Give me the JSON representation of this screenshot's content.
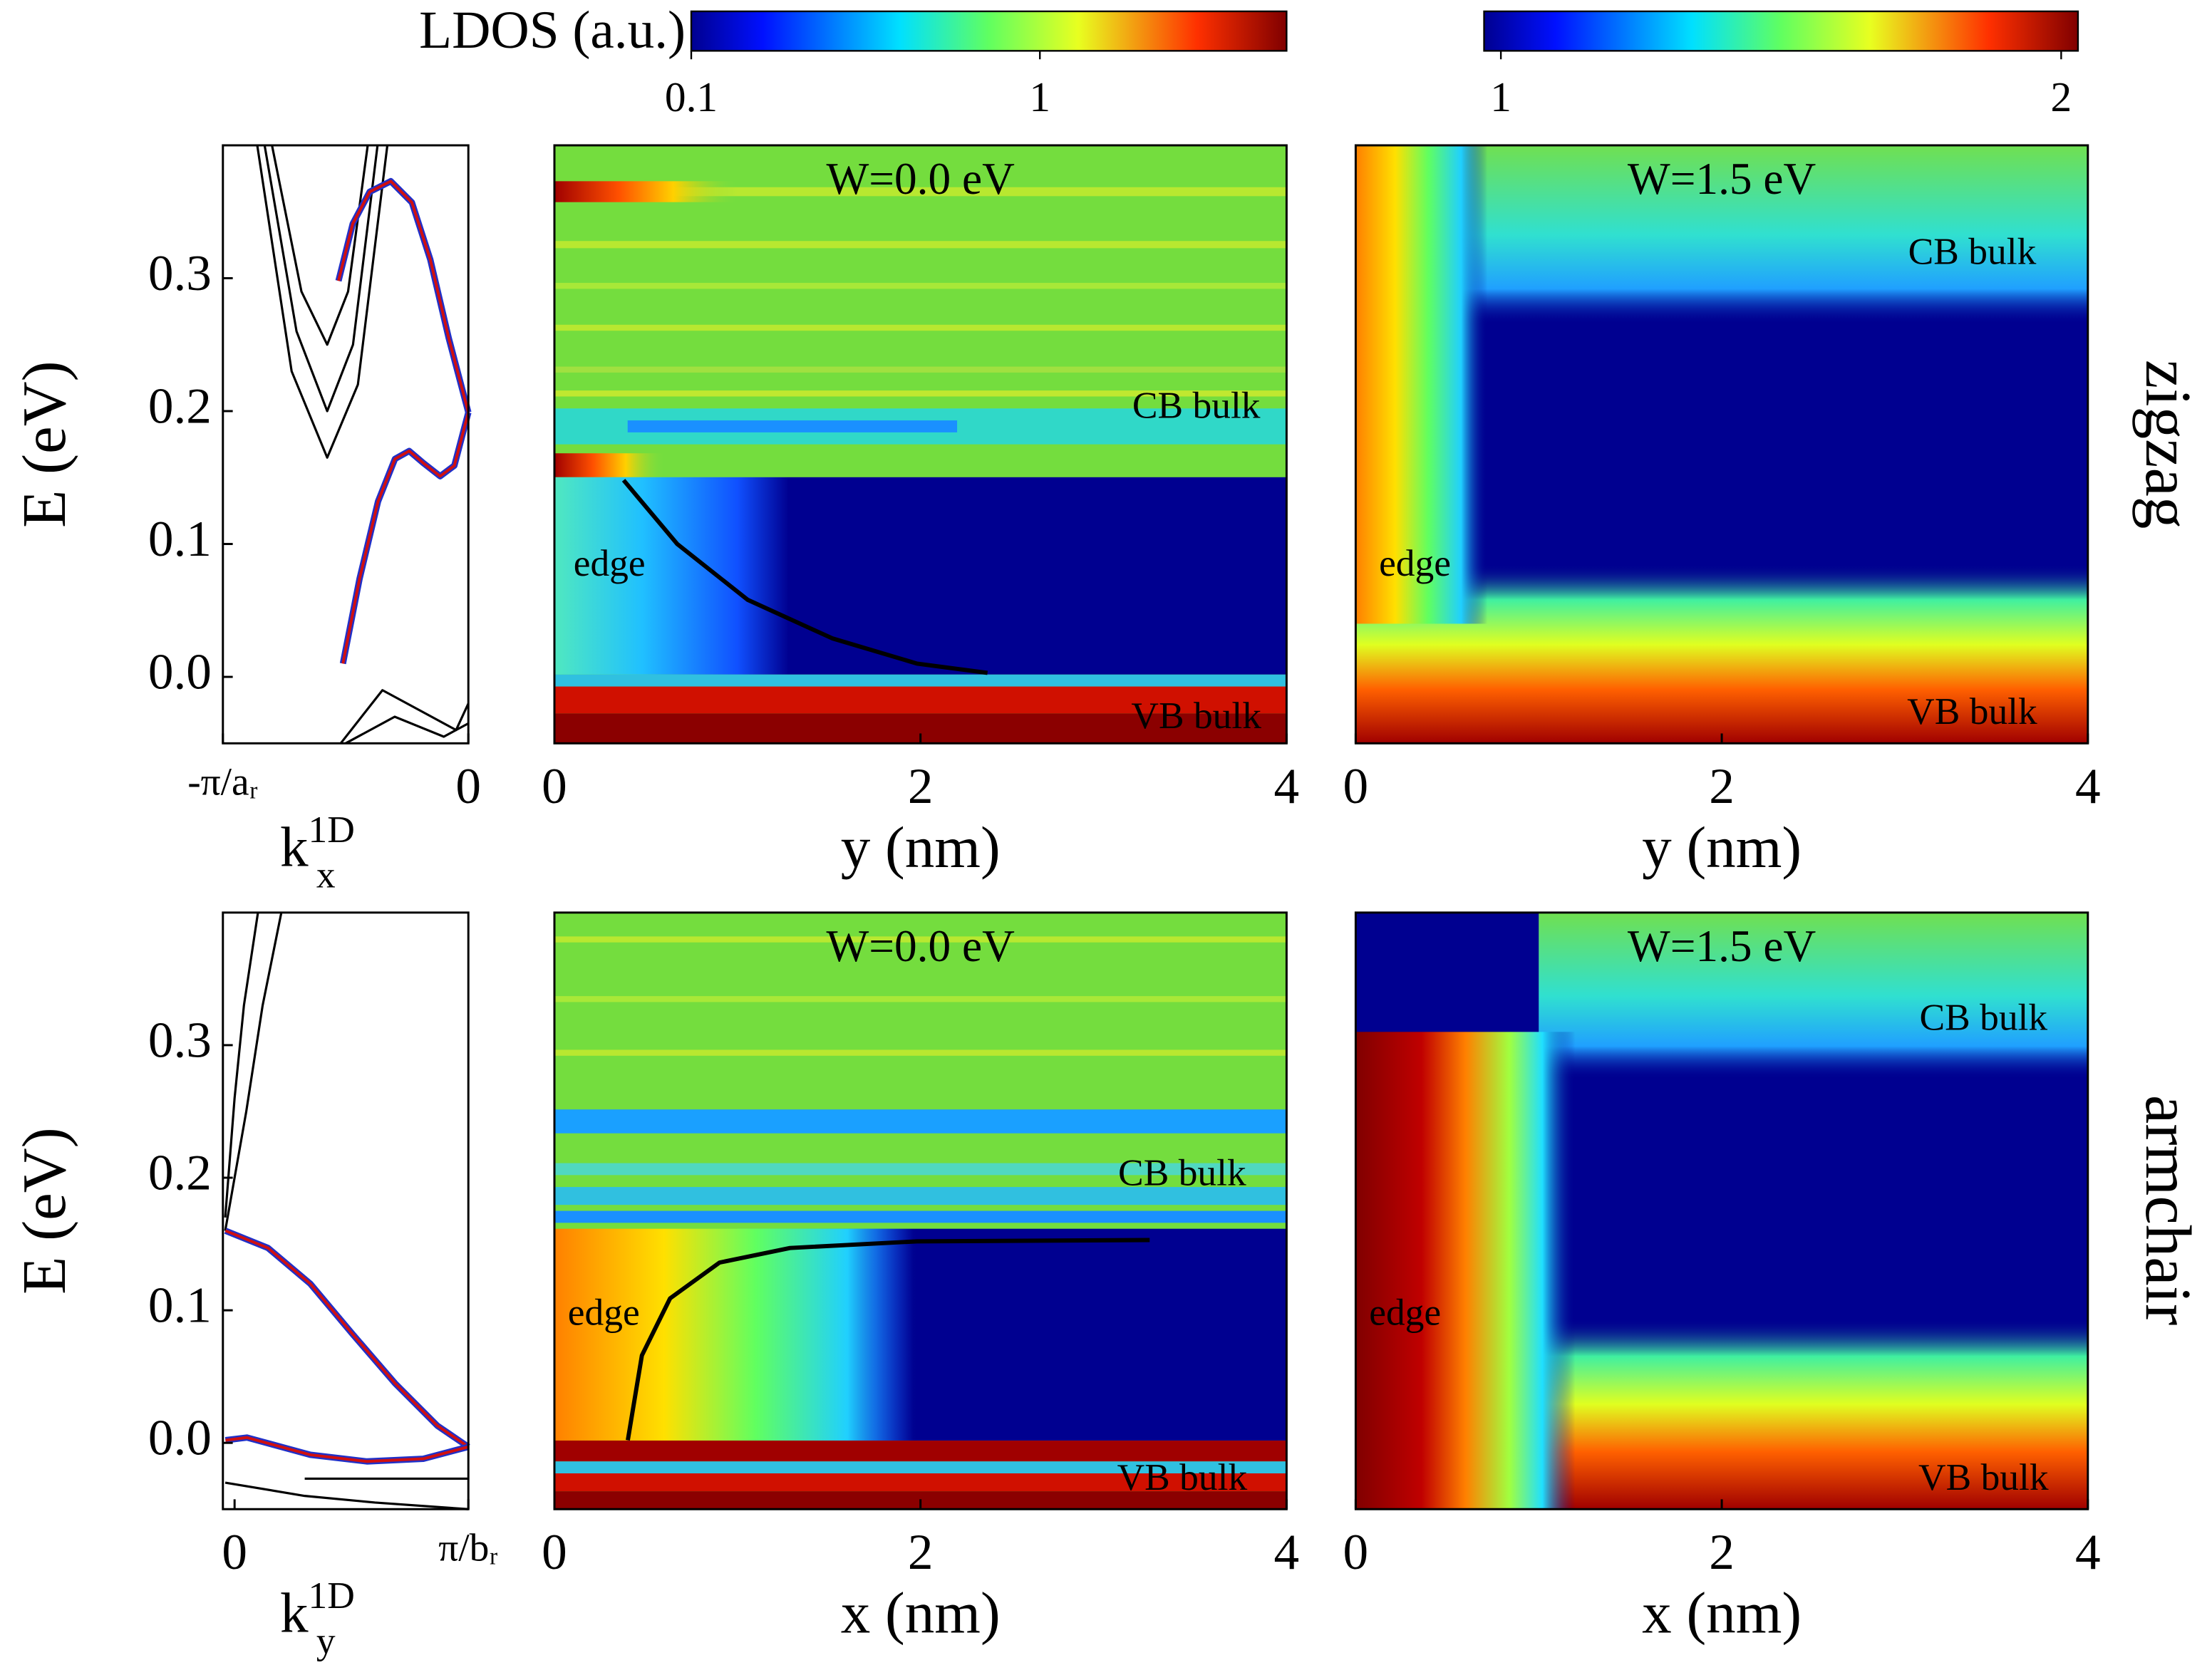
{
  "colorbars": [
    {
      "label": "LDOS (a.u.)",
      "scale": "log",
      "lim": [
        0.1,
        5.1
      ],
      "ticks": [
        0.1,
        1
      ]
    },
    {
      "scale": "linear",
      "lim": [
        0.97,
        2.03
      ],
      "ticks": [
        1,
        2
      ]
    }
  ],
  "row_labels": [
    "zigzag",
    "armchair"
  ],
  "chart_data": [
    {
      "type": "band",
      "ylabel": "E (eV)",
      "xlabel": {
        "base": "k",
        "sub": "x",
        "sup": "1D"
      },
      "xlim": [
        -1,
        0
      ],
      "xticks": [
        {
          "value": -1,
          "label": "-π/aᵣ"
        },
        0
      ],
      "ylim": [
        -0.05,
        0.4
      ],
      "yticks": [
        {
          "value": 0,
          "label": "0.0"
        },
        0.1,
        0.2,
        0.3
      ],
      "series": [
        {
          "color": "#000000",
          "x": [
            -0.86,
            -0.72,
            -0.575,
            -0.45,
            -0.33
          ],
          "values": [
            0.4,
            0.23,
            0.165,
            0.22,
            0.4
          ]
        },
        {
          "color": "#000000",
          "x": [
            -0.83,
            -0.7,
            -0.575,
            -0.47,
            -0.37
          ],
          "values": [
            0.4,
            0.26,
            0.2,
            0.25,
            0.4
          ]
        },
        {
          "color": "#000000",
          "x": [
            -0.8,
            -0.68,
            -0.575,
            -0.49,
            -0.41
          ],
          "values": [
            0.4,
            0.29,
            0.25,
            0.29,
            0.4
          ]
        },
        {
          "color": "#000000",
          "x": [
            -0.52,
            -0.35,
            -0.15,
            -0.05,
            0
          ],
          "values": [
            -0.05,
            -0.01,
            -0.03,
            -0.04,
            -0.02
          ]
        },
        {
          "color": "#000000",
          "x": [
            -0.5,
            -0.3,
            -0.1,
            0
          ],
          "values": [
            -0.05,
            -0.03,
            -0.045,
            -0.035
          ]
        },
        {
          "color": "#d01010",
          "edgecolor": "#2030c8",
          "x": [
            -0.529,
            -0.471,
            -0.402,
            -0.316,
            -0.23,
            -0.155,
            -0.08,
            0
          ],
          "values": [
            0.298,
            0.341,
            0.365,
            0.373,
            0.357,
            0.314,
            0.255,
            0.199
          ]
        },
        {
          "color": "#d01010",
          "edgecolor": "#2030c8",
          "x": [
            -0.511,
            -0.443,
            -0.368,
            -0.299,
            -0.241,
            -0.184,
            -0.115,
            -0.057,
            0
          ],
          "values": [
            0.01,
            0.074,
            0.132,
            0.164,
            0.17,
            0.161,
            0.151,
            0.159,
            0.199
          ]
        }
      ]
    },
    {
      "type": "heatmap",
      "title": "W=0.0 eV",
      "xlabel": "y (nm)",
      "xlim": [
        0,
        4
      ],
      "xticks": [
        0,
        2,
        4
      ],
      "ylim": [
        -0.05,
        0.4
      ],
      "annotations": [
        {
          "text": "CB bulk",
          "color": "#000000"
        },
        {
          "text": "edge",
          "color": "#000000"
        },
        {
          "text": "VB bulk",
          "color": "#ffffff"
        }
      ],
      "series": [
        {
          "color": "#000000",
          "x": [
            0.378,
            0.671,
            1.056,
            1.518,
            1.981,
            2.366
          ],
          "values": [
            0.148,
            0.1,
            0.058,
            0.029,
            0.01,
            0.003
          ]
        }
      ]
    },
    {
      "type": "heatmap",
      "title": "W=1.5 eV",
      "xlabel": "y (nm)",
      "xlim": [
        0,
        4
      ],
      "xticks": [
        0,
        2,
        4
      ],
      "ylim": [
        -0.05,
        0.4
      ],
      "annotations": [
        {
          "text": "CB bulk",
          "color": "#000000"
        },
        {
          "text": "edge",
          "color": "#000000"
        },
        {
          "text": "VB bulk",
          "color": "#ffffff"
        }
      ],
      "series": []
    },
    {
      "type": "band",
      "ylabel": "E (eV)",
      "xlabel": {
        "base": "k",
        "sub": "y",
        "sup": "1D"
      },
      "xlim": [
        -0.05,
        1
      ],
      "xticks": [
        0,
        {
          "value": 1,
          "label": "π/bᵣ"
        }
      ],
      "ylim": [
        -0.05,
        0.4
      ],
      "yticks": [
        {
          "value": 0,
          "label": "0.0"
        },
        0.1,
        0.2,
        0.3
      ],
      "series": [
        {
          "color": "#000000",
          "x": [
            -0.04,
            0.05,
            0.12,
            0.2
          ],
          "values": [
            0.16,
            0.25,
            0.33,
            0.4
          ]
        },
        {
          "color": "#000000",
          "x": [
            -0.04,
            0.0,
            0.04,
            0.1
          ],
          "values": [
            0.17,
            0.26,
            0.33,
            0.4
          ]
        },
        {
          "color": "#000000",
          "x": [
            -0.04,
            0.3,
            0.6,
            1.0
          ],
          "values": [
            -0.03,
            -0.04,
            -0.045,
            -0.05
          ]
        },
        {
          "color": "#000000",
          "x": [
            0.3,
            0.6,
            1.0
          ],
          "values": [
            -0.027,
            -0.027,
            -0.027
          ]
        },
        {
          "color": "#d01010",
          "edgecolor": "#2030c8",
          "x": [
            -0.039,
            0.143,
            0.324,
            0.505,
            0.686,
            0.867,
            1.0
          ],
          "values": [
            0.16,
            0.147,
            0.12,
            0.082,
            0.045,
            0.013,
            -0.003
          ]
        },
        {
          "color": "#d01010",
          "edgecolor": "#2030c8",
          "x": [
            -0.039,
            0.053,
            0.324,
            0.566,
            0.807,
            1.0
          ],
          "values": [
            0.002,
            0.004,
            -0.009,
            -0.014,
            -0.012,
            -0.003
          ]
        }
      ]
    },
    {
      "type": "heatmap",
      "title": "W=0.0 eV",
      "xlabel": "x (nm)",
      "xlim": [
        0,
        4
      ],
      "xticks": [
        0,
        2,
        4
      ],
      "ylim": [
        -0.05,
        0.4
      ],
      "annotations": [
        {
          "text": "CB bulk",
          "color": "#000000"
        },
        {
          "text": "edge",
          "color": "#000000"
        },
        {
          "text": "VB bulk",
          "color": "#ffffff"
        }
      ],
      "series": [
        {
          "color": "#000000",
          "x": [
            0.401,
            0.478,
            0.632,
            0.902,
            1.287,
            1.981,
            3.252
          ],
          "values": [
            0.002,
            0.066,
            0.109,
            0.136,
            0.147,
            0.152,
            0.153
          ]
        }
      ]
    },
    {
      "type": "heatmap",
      "title": "W=1.5 eV",
      "xlabel": "x (nm)",
      "xlim": [
        0,
        4
      ],
      "xticks": [
        0,
        2,
        4
      ],
      "ylim": [
        -0.05,
        0.4
      ],
      "annotations": [
        {
          "text": "CB bulk",
          "color": "#000000"
        },
        {
          "text": "edge",
          "color": "#000000"
        },
        {
          "text": "VB bulk",
          "color": "#ffffff"
        }
      ],
      "series": []
    }
  ]
}
